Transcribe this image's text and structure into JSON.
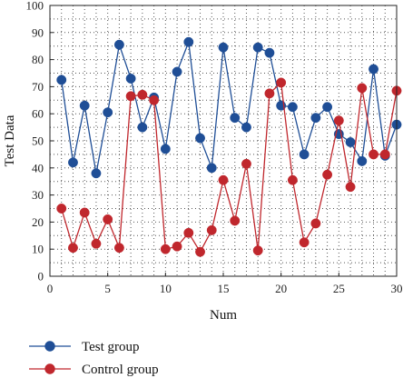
{
  "chart_data": {
    "type": "line",
    "xlabel": "Num",
    "ylabel": "Test Data",
    "xlim": [
      0,
      30
    ],
    "ylim": [
      0,
      100
    ],
    "x_ticks": [
      0,
      5,
      10,
      15,
      20,
      25,
      30
    ],
    "y_ticks": [
      0,
      10,
      20,
      30,
      40,
      50,
      60,
      70,
      80,
      90,
      100
    ],
    "grid": true,
    "legend_position": "bottom-left",
    "x": [
      1,
      2,
      3,
      4,
      5,
      6,
      7,
      8,
      9,
      10,
      11,
      12,
      13,
      14,
      15,
      16,
      17,
      18,
      19,
      20,
      21,
      22,
      23,
      24,
      25,
      26,
      27,
      28,
      29,
      30
    ],
    "series": [
      {
        "name": "Test group",
        "color": "#1f4e96",
        "marker": "circle",
        "values": [
          72.5,
          42,
          63,
          38,
          60.5,
          85.5,
          73,
          55,
          66,
          47,
          75.5,
          86.5,
          51,
          40,
          84.5,
          58.5,
          55,
          84.5,
          82.5,
          63,
          62.5,
          45,
          58.5,
          62.5,
          52.5,
          49.5,
          42.5,
          76.5,
          44.5,
          56
        ]
      },
      {
        "name": "Control group",
        "color": "#c0272d",
        "marker": "circle",
        "values": [
          25,
          10.5,
          23.5,
          12,
          21,
          10.5,
          66.5,
          67,
          65,
          10,
          11,
          16,
          9,
          17,
          35.5,
          20.5,
          41.5,
          9.5,
          67.5,
          71.5,
          35.5,
          12.5,
          19.5,
          37.5,
          57.5,
          33,
          69.5,
          45,
          45,
          68.5
        ]
      }
    ]
  }
}
